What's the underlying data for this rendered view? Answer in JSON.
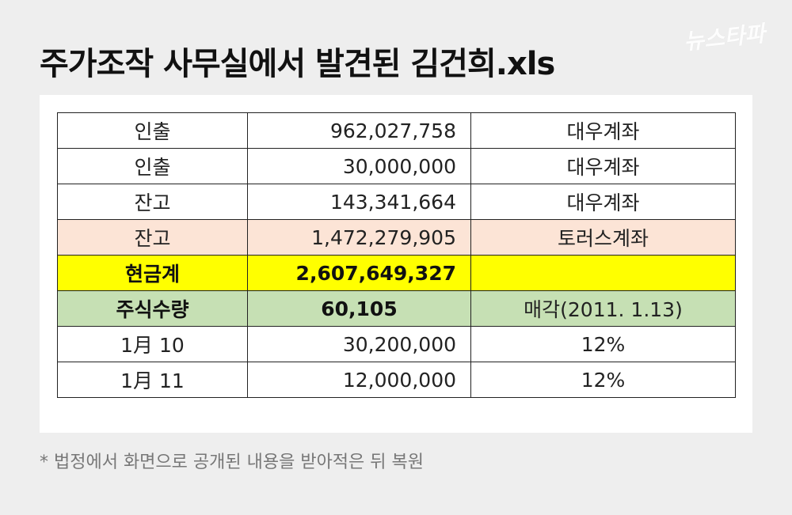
{
  "title": "주가조작 사무실에서 발견된 김건희.xls",
  "logo": "뉴스타파",
  "table": {
    "rows": [
      {
        "label": "인출",
        "amount": "962,027,758",
        "note": "대우계좌"
      },
      {
        "label": "인출",
        "amount": "30,000,000",
        "note": "대우계좌"
      },
      {
        "label": "잔고",
        "amount": "143,341,664",
        "note": "대우계좌"
      },
      {
        "label": "잔고",
        "amount": "1,472,279,905",
        "note": "토러스계좌"
      },
      {
        "label": "현금계",
        "amount": "2,607,649,327",
        "note": ""
      },
      {
        "label": "주식수량",
        "amount": "60,105",
        "note": "매각(2011. 1.13)"
      },
      {
        "label": "1月  10",
        "amount": "30,200,000",
        "note": "12%"
      },
      {
        "label": "1月  11",
        "amount": "12,000,000",
        "note": "12%"
      }
    ]
  },
  "colors": {
    "pink_row": "#fce4d6",
    "yellow_row": "#ffff00",
    "green_row": "#c6e0b4"
  },
  "footnote": "* 법정에서 화면으로 공개된 내용을 받아적은 뒤 복원"
}
